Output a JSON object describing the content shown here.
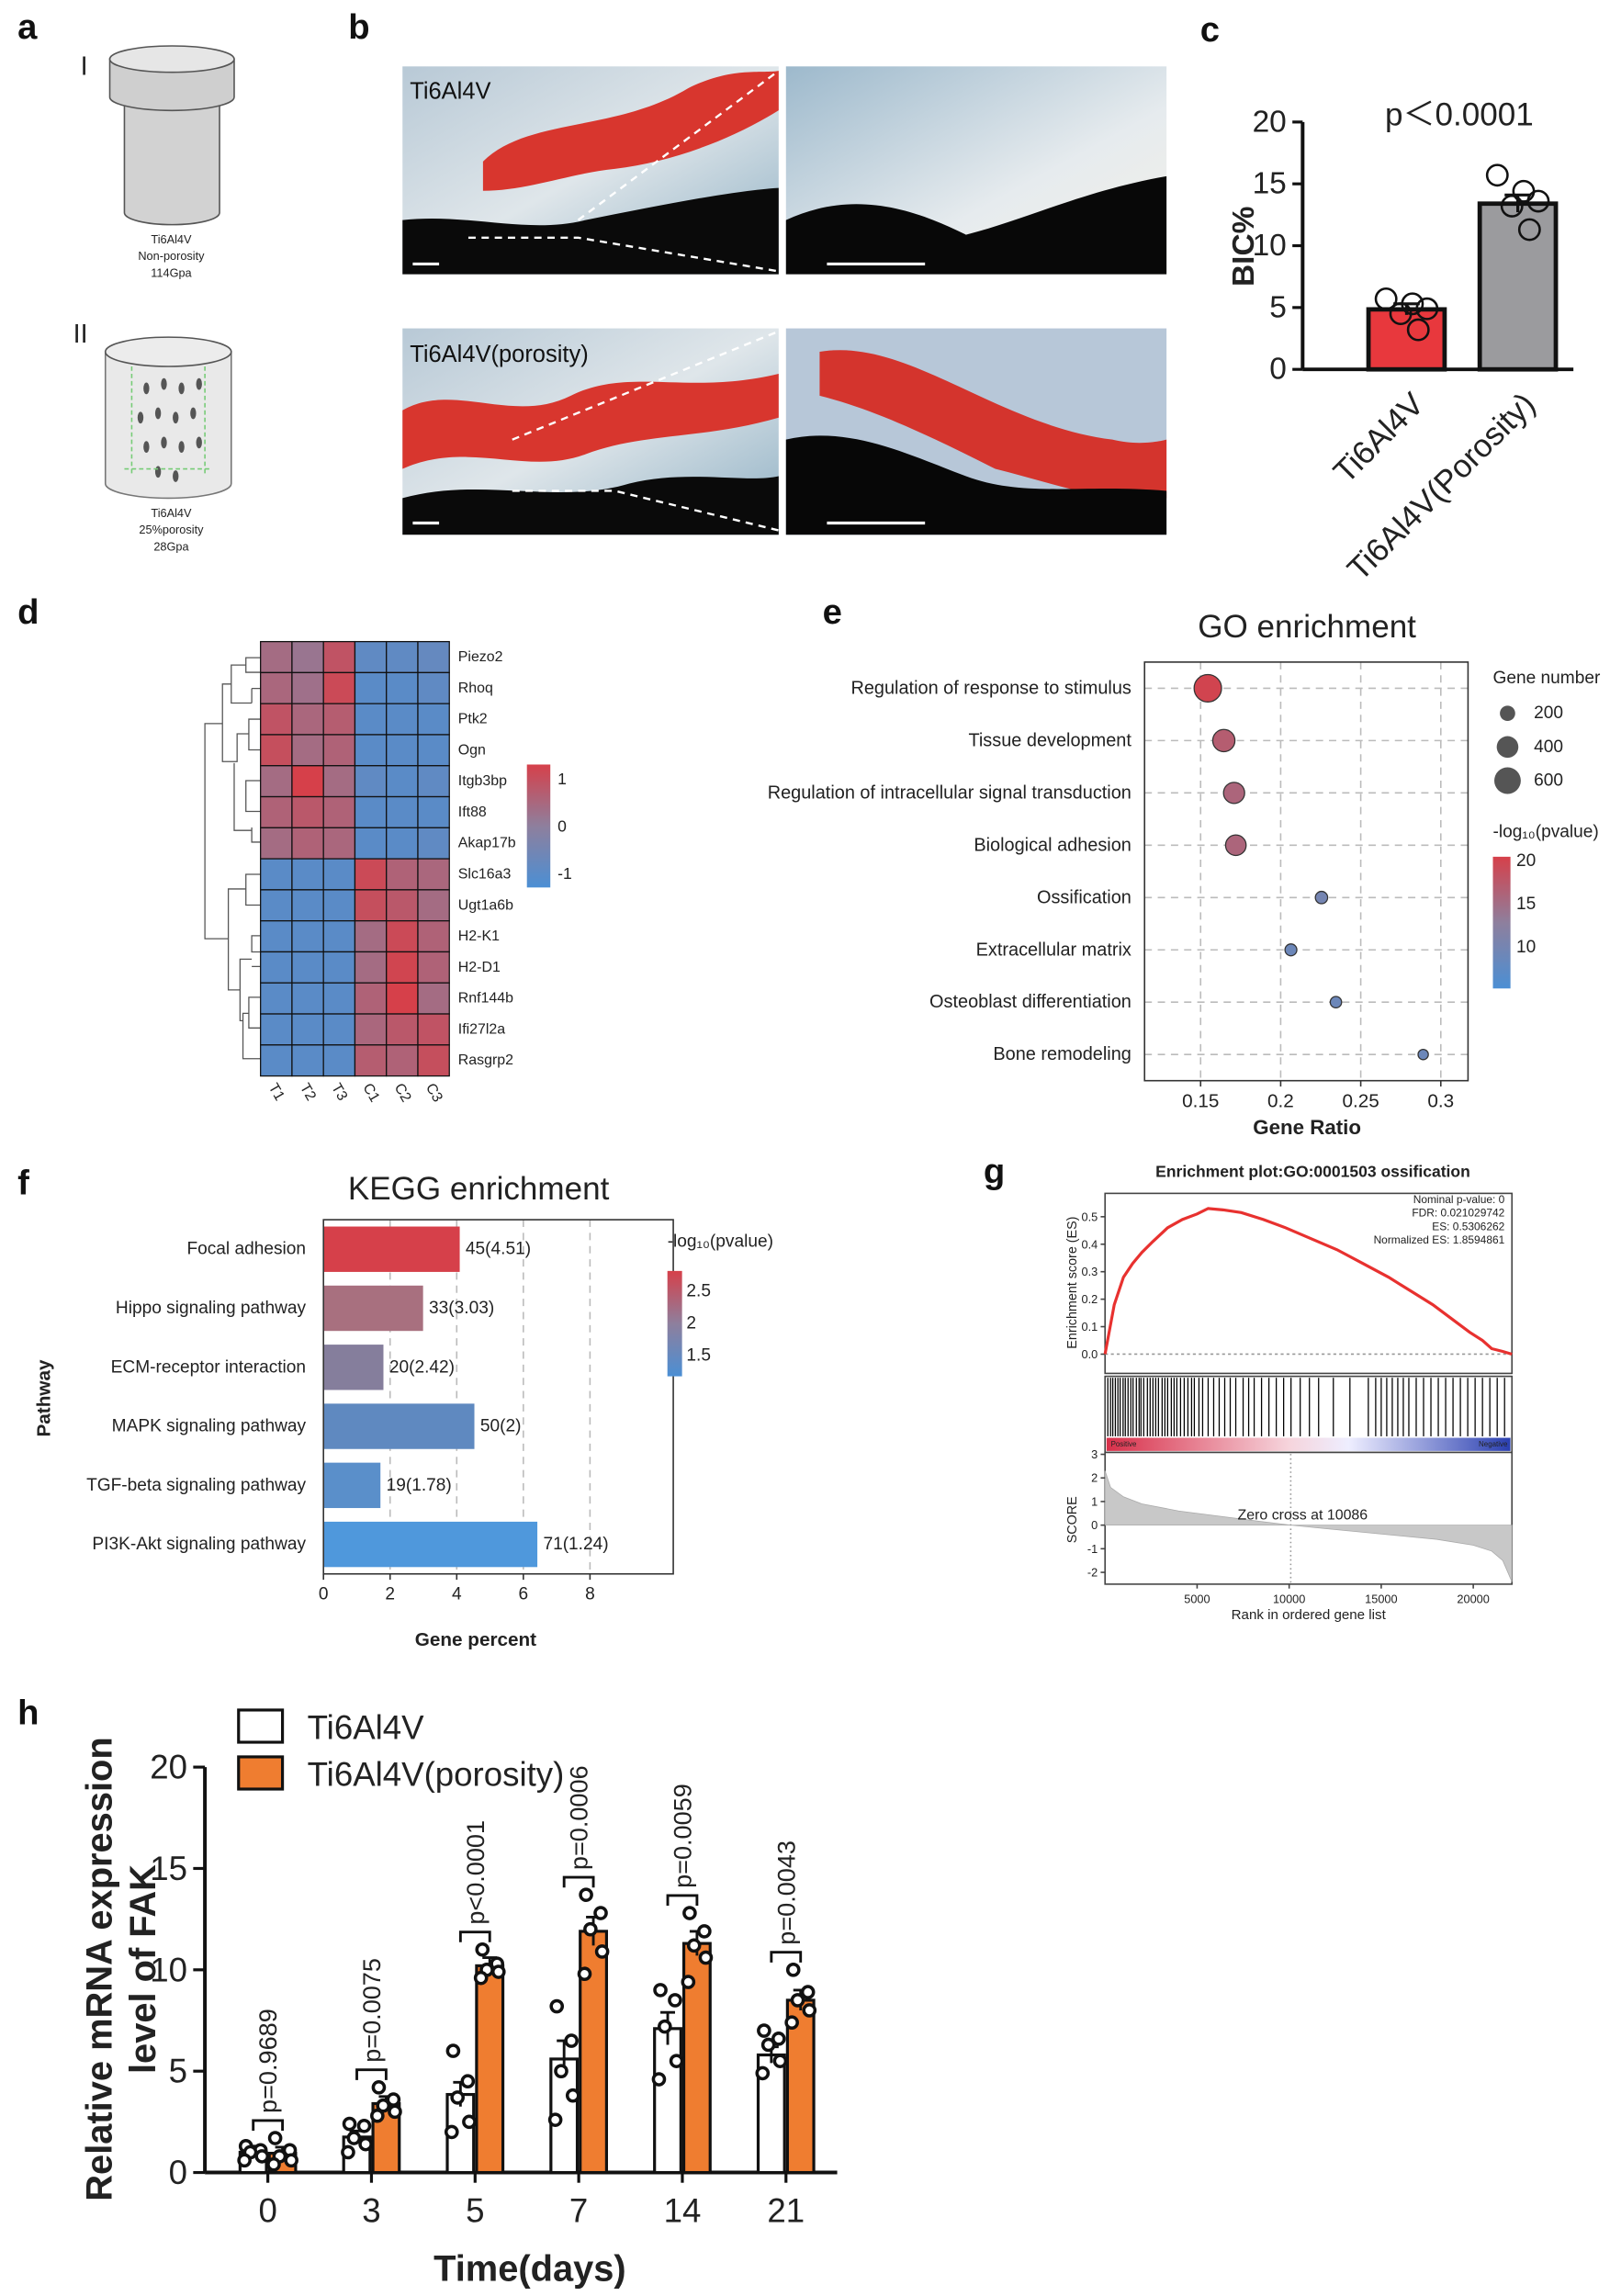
{
  "schematic": {
    "panel": "a",
    "items": [
      {
        "numeral": "I",
        "lines": [
          "Ti6Al4V",
          "Non-porosity",
          "114Gpa"
        ]
      },
      {
        "numeral": "II",
        "lines": [
          "Ti6Al4V",
          "25%porosity",
          "28Gpa"
        ]
      }
    ]
  },
  "histology": {
    "panel": "b",
    "labels": [
      "Ti6Al4V",
      "Ti6Al4V(porosity)"
    ]
  },
  "chart_data": [
    {
      "panel": "c",
      "type": "bar",
      "title": "p＜0.0001",
      "ylabel": "BIC%",
      "categories": [
        "Ti6Al4V",
        "Ti6Al4V(Porosity)"
      ],
      "values": [
        4.85,
        13.4
      ],
      "errors": [
        0.45,
        0.7
      ],
      "points": [
        [
          5.7,
          5.3,
          4.9,
          4.5,
          3.2
        ],
        [
          15.7,
          14.4,
          13.6,
          13.2,
          11.3
        ]
      ],
      "colors": [
        "#e8383d",
        "#9b9b9e"
      ],
      "ylim": [
        0,
        20
      ],
      "yticks": [
        0,
        5,
        10,
        15,
        20
      ]
    },
    {
      "panel": "d",
      "type": "heatmap",
      "rows": [
        "Piezo2",
        "Rhoq",
        "Ptk2",
        "Ogn",
        "Itgb3bp",
        "Ift88",
        "Akap17b",
        "Slc16a3",
        "Ugt1a6b",
        "H2-K1",
        "H2-D1",
        "Rnf144b",
        "Ifi27l2a",
        "Rasgrp2"
      ],
      "columns": [
        "T1",
        "T2",
        "T3",
        "C1",
        "C2",
        "C3"
      ],
      "values": [
        [
          0.4,
          0.2,
          0.9,
          -0.9,
          -0.9,
          -0.8
        ],
        [
          0.5,
          0.3,
          1.1,
          -1,
          -1,
          -0.9
        ],
        [
          0.9,
          0.5,
          0.7,
          -1,
          -1,
          -1
        ],
        [
          1.0,
          0.4,
          0.6,
          -1,
          -1,
          -1
        ],
        [
          0.4,
          1.3,
          0.4,
          -0.9,
          -1,
          -0.9
        ],
        [
          0.6,
          0.8,
          0.6,
          -1,
          -1,
          -1
        ],
        [
          0.4,
          0.6,
          0.5,
          -1,
          -1,
          -0.9
        ],
        [
          -1,
          -1,
          -1,
          1.1,
          0.6,
          0.5
        ],
        [
          -1,
          -1,
          -1,
          1.0,
          0.8,
          0.4
        ],
        [
          -1,
          -1,
          -1,
          0.4,
          1.1,
          0.6
        ],
        [
          -1,
          -1,
          -1,
          0.4,
          1.2,
          0.6
        ],
        [
          -1,
          -1,
          -1,
          0.6,
          1.3,
          0.4
        ],
        [
          -1,
          -1,
          -1,
          0.5,
          0.8,
          0.9
        ],
        [
          -1,
          -1,
          -1,
          0.7,
          0.6,
          1.0
        ]
      ],
      "colors": [
        "#4b8fd4",
        "#8e7f9d",
        "#d6404a"
      ],
      "clim": [
        -1.3,
        1.3
      ],
      "colorbar_ticks": [
        1,
        0,
        -1
      ]
    },
    {
      "panel": "e",
      "type": "scatter",
      "title": "GO enrichment",
      "xlabel": "Gene Ratio",
      "categories": [
        "Regulation of response to stimulus",
        "Tissue development",
        "Regulation of intracellular signal transduction",
        "Biological adhesion",
        "Ossification",
        "Extracellular matrix",
        "Osteoblast differentiation",
        "Bone remodeling"
      ],
      "x": [
        0.1545,
        0.1645,
        0.1709,
        0.172,
        0.2255,
        0.2064,
        0.2345,
        0.289
      ],
      "sizes": [
        640,
        420,
        380,
        360,
        130,
        120,
        110,
        90
      ],
      "color_values": [
        20,
        17,
        16,
        16,
        10,
        9,
        9,
        9
      ],
      "xlim": [
        0.115,
        0.317
      ],
      "xticks": [
        0.15,
        0.2,
        0.25,
        0.3
      ],
      "grid": true,
      "size_legend": {
        "title": "Gene number",
        "values": [
          200,
          400,
          600
        ]
      },
      "color_legend": {
        "title": "-log₁₀(pvalue)",
        "clim": [
          5.25,
          20.5
        ],
        "ticks": [
          20,
          15,
          10
        ],
        "colors": [
          "#4b8fd4",
          "#8e7f9d",
          "#d6404a"
        ]
      }
    },
    {
      "panel": "f",
      "type": "barh",
      "title": "KEGG enrichment",
      "xlabel": "Gene percent",
      "ylabel": "Pathway",
      "categories": [
        "Focal adhesion",
        "Hippo signaling pathway",
        "ECM-receptor interaction",
        "MAPK signaling pathway",
        "TGF-beta signaling pathway",
        "PI3K-Akt signaling pathway"
      ],
      "values": [
        4.09,
        2.99,
        1.8,
        4.53,
        1.71,
        6.42
      ],
      "bar_labels": [
        "45(4.51)",
        "33(3.03)",
        "20(2.42)",
        "50(2)",
        "19(1.78)",
        "71(1.24)"
      ],
      "colors": [
        "#d6404a",
        "#a8707f",
        "#857e9c",
        "#5f89c0",
        "#5a8fca",
        "#4f98dc"
      ],
      "xlim": [
        0,
        10.5
      ],
      "xticks": [
        0,
        2,
        4,
        6,
        8
      ],
      "grid": true,
      "color_legend": {
        "title": "-log₁₀(pvalue)",
        "clim": [
          1.18,
          2.82
        ],
        "ticks": [
          2.5,
          2,
          1.5
        ],
        "colors": [
          "#4b8fd4",
          "#8e7f9d",
          "#d6404a"
        ]
      }
    },
    {
      "panel": "g",
      "type": "gsea",
      "title": "Enrichment plot:GO:0001503 ossification",
      "stats": [
        "Nominal p-value: 0",
        "FDR: 0.021029742",
        "ES: 0.5306262",
        "Normalized ES: 1.8594861"
      ],
      "ylabel": "Enrichment score (ES)",
      "xlabel": "Rank in ordered gene list",
      "x": [
        0,
        500,
        1000,
        1500,
        2000,
        2600,
        3400,
        4200,
        5000,
        5600,
        6400,
        7400,
        8600,
        9800,
        11200,
        12600,
        14000,
        15400,
        16600,
        17800,
        18800,
        19800,
        20500,
        21000,
        21600,
        22100
      ],
      "values": [
        0,
        0.18,
        0.28,
        0.33,
        0.37,
        0.41,
        0.46,
        0.49,
        0.51,
        0.53,
        0.525,
        0.515,
        0.49,
        0.46,
        0.42,
        0.38,
        0.33,
        0.28,
        0.23,
        0.18,
        0.13,
        0.08,
        0.05,
        0.02,
        0.01,
        0
      ],
      "color": "#e8312f",
      "ylim": [
        -0.07,
        0.585
      ],
      "yticks": [
        {
          "value": 0,
          "label": "0.0"
        },
        0.1,
        0.2,
        0.3,
        0.4,
        0.5
      ],
      "xlim": [
        0,
        22100
      ],
      "xticks": [
        5000,
        10000,
        15000,
        20000
      ],
      "hits": [
        150,
        300,
        420,
        560,
        700,
        820,
        980,
        1100,
        1250,
        1400,
        1520,
        1700,
        1850,
        1950,
        2100,
        2300,
        2450,
        2600,
        2750,
        2900,
        3100,
        3250,
        3400,
        3600,
        3750,
        3900,
        4100,
        4300,
        4500,
        4700,
        4850,
        5100,
        5300,
        5600,
        5900,
        6200,
        6500,
        6800,
        7100,
        7500,
        7800,
        8100,
        8500,
        8900,
        9300,
        9700,
        10100,
        10600,
        11100,
        11600,
        12400,
        13300,
        14300,
        14700,
        15000,
        15300,
        15600,
        15900,
        16200,
        16500,
        16900,
        17300,
        17700,
        18100,
        18500,
        18900,
        19300,
        19700,
        20100,
        20500,
        20900,
        21300,
        21700
      ],
      "band_labels": [
        "Positive",
        "Negative"
      ],
      "score": {
        "ylabel": "SCORE",
        "x": [
          0,
          300,
          1000,
          2000,
          4000,
          6000,
          8000,
          10086,
          12000,
          14000,
          16000,
          18000,
          20000,
          21000,
          21600,
          22100
        ],
        "values": [
          2.3,
          1.6,
          1.2,
          0.9,
          0.6,
          0.4,
          0.2,
          0,
          -0.15,
          -0.3,
          -0.45,
          -0.6,
          -0.85,
          -1.1,
          -1.5,
          -2.4
        ],
        "ylim": [
          -2.5,
          3.08
        ],
        "yticks": [
          3,
          2,
          1,
          0,
          -1,
          -2
        ]
      },
      "zero_cross": 10086,
      "zero_cross_label": "Zero cross at 10086"
    },
    {
      "panel": "h",
      "type": "grouped_bar",
      "xlabel": "Time(days)",
      "ylabel": [
        "Relative mRNA expression",
        "level of FAK"
      ],
      "categories": [
        "0",
        "3",
        "5",
        "7",
        "14",
        "21"
      ],
      "series": [
        {
          "name": "Ti6Al4V",
          "color": "#ffffff",
          "values": [
            1.0,
            1.75,
            3.85,
            5.6,
            7.1,
            5.8
          ],
          "errors": [
            0.3,
            0.3,
            0.6,
            0.9,
            0.8,
            0.4
          ],
          "points": [
            [
              1.3,
              1.1,
              1.0,
              0.8,
              0.6
            ],
            [
              2.4,
              2.3,
              1.7,
              1.4,
              1.0
            ],
            [
              6.0,
              4.5,
              3.7,
              2.5,
              2.0
            ],
            [
              8.2,
              6.5,
              5.0,
              3.8,
              2.6
            ],
            [
              9.0,
              8.5,
              7.2,
              5.5,
              4.6
            ],
            [
              7.0,
              6.6,
              6.3,
              5.5,
              4.9
            ]
          ]
        },
        {
          "name": "Ti6Al4V(porosity)",
          "color": "#ef7d30",
          "values": [
            0.95,
            3.4,
            10.2,
            11.9,
            11.3,
            8.5
          ],
          "errors": [
            0.3,
            0.35,
            0.4,
            0.7,
            0.6,
            0.5
          ],
          "points": [
            [
              1.7,
              1.1,
              0.8,
              0.6,
              0.4
            ],
            [
              4.2,
              3.6,
              3.3,
              3.0,
              2.8
            ],
            [
              11.0,
              10.3,
              10.0,
              9.9,
              9.6
            ],
            [
              13.7,
              12.8,
              12.0,
              10.9,
              9.8
            ],
            [
              12.8,
              11.9,
              11.2,
              10.6,
              9.4
            ],
            [
              10.0,
              8.9,
              8.5,
              8.0,
              7.4
            ]
          ]
        }
      ],
      "annotations": [
        "p=0.9689",
        "p=0.0075",
        "p<0.0001",
        "p=0.0006",
        "p=0.0059",
        "p=0.0043"
      ],
      "ylim": [
        0,
        20
      ],
      "yticks": [
        0,
        5,
        10,
        15,
        20
      ]
    }
  ]
}
